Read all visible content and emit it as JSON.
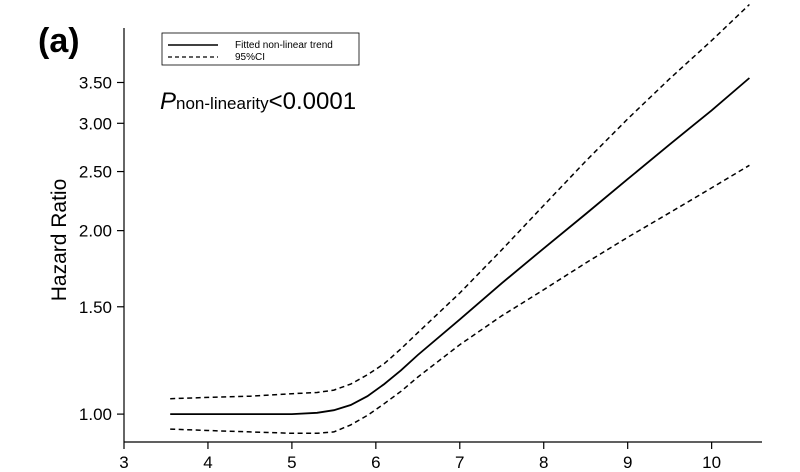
{
  "chart_data": {
    "type": "line",
    "panel_label": "(a)",
    "title": "",
    "xlabel": "",
    "ylabel": "Hazard Ratio",
    "y_scale": "log",
    "xlim": [
      3,
      10.6
    ],
    "ylim": [
      0.9,
      4.3
    ],
    "x_ticks": [
      3,
      4,
      5,
      6,
      7,
      8,
      9,
      10
    ],
    "x_tick_labels": [
      "3",
      "4",
      "5",
      "6",
      "7",
      "8",
      "9",
      "10"
    ],
    "y_ticks": [
      1.0,
      1.5,
      2.0,
      2.5,
      3.0,
      3.5
    ],
    "y_tick_labels": [
      "1.00",
      "1.50",
      "2.00",
      "2.50",
      "3.00",
      "3.50"
    ],
    "grid": false,
    "legend": {
      "placement": "top-left",
      "entries": [
        {
          "label": "Fitted non-linear trend",
          "style": "solid"
        },
        {
          "label": "95%CI",
          "style": "dashed"
        }
      ]
    },
    "annotation": {
      "italic": "P",
      "subscript": "non-linearity",
      "text": "<0.0001"
    },
    "series": [
      {
        "style": "solid",
        "x": [
          3.55,
          4.0,
          4.5,
          5.0,
          5.3,
          5.5,
          5.7,
          5.9,
          6.1,
          6.3,
          6.5,
          7.0,
          7.5,
          8.0,
          8.5,
          9.0,
          9.5,
          10.0,
          10.45
        ],
        "y": [
          1.0,
          1.0,
          1.0,
          1.0,
          1.005,
          1.015,
          1.035,
          1.07,
          1.12,
          1.18,
          1.25,
          1.43,
          1.64,
          1.87,
          2.13,
          2.43,
          2.77,
          3.15,
          3.56
        ]
      },
      {
        "style": "dashed",
        "x": [
          3.55,
          4.0,
          4.5,
          5.0,
          5.3,
          5.5,
          5.7,
          5.9,
          6.1,
          6.3,
          6.5,
          7.0,
          7.5,
          8.0,
          8.5,
          9.0,
          9.5,
          10.0,
          10.45
        ],
        "y": [
          1.06,
          1.065,
          1.07,
          1.08,
          1.085,
          1.095,
          1.12,
          1.16,
          1.21,
          1.28,
          1.36,
          1.58,
          1.86,
          2.2,
          2.6,
          3.05,
          3.55,
          4.1,
          4.7
        ]
      },
      {
        "style": "dashed",
        "x": [
          3.55,
          4.0,
          4.5,
          5.0,
          5.3,
          5.5,
          5.7,
          5.9,
          6.1,
          6.3,
          6.5,
          7.0,
          7.5,
          8.0,
          8.5,
          9.0,
          9.5,
          10.0,
          10.45
        ],
        "y": [
          0.945,
          0.94,
          0.935,
          0.93,
          0.93,
          0.935,
          0.96,
          0.995,
          1.04,
          1.09,
          1.15,
          1.3,
          1.45,
          1.6,
          1.77,
          1.95,
          2.14,
          2.35,
          2.56
        ]
      }
    ]
  }
}
